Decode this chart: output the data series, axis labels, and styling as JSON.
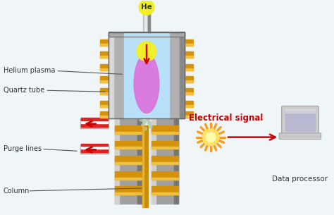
{
  "background_color": "#f0f5f8",
  "he_label": "He",
  "he_color": "#f0f020",
  "he_text_color": "#333333",
  "labels": {
    "helium_plasma": "Helium plasma",
    "quartz_tube": "Quartz tube",
    "purge_lines": "Purge lines",
    "column": "Column",
    "electrical_signal": "Electrical signal",
    "data_processor": "Data processor"
  },
  "label_color": "#333333",
  "electrical_signal_color": "#cc0000",
  "arrow_color": "#cc0000",
  "plasma_color_outer": "#b8e0f8",
  "plasma_color_inner": "#dd70dd",
  "plasma_top_color": "#f5f020",
  "body_gray": "#999999",
  "body_light": "#bbbbbb",
  "gold_color": "#d4910a",
  "dark_gray": "#666666",
  "sun_color": "#f5a020",
  "sun_inner": "#ffe066"
}
